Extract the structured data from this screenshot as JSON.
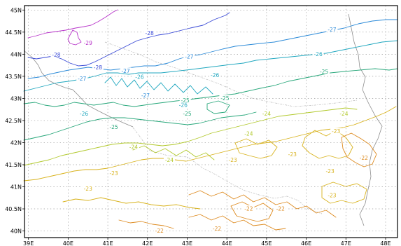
{
  "map": {
    "lat_ticks": [
      "45N",
      "44.5N",
      "44N",
      "43.5N",
      "43N",
      "42.5N",
      "42N",
      "41.5N",
      "41N",
      "40.5N",
      "40N"
    ],
    "lon_ticks": [
      "39E",
      "40E",
      "41E",
      "42E",
      "43E",
      "44E",
      "45E",
      "46E",
      "47E",
      "48E"
    ],
    "lat_range": [
      39.85,
      45.1
    ],
    "lon_range": [
      38.9,
      48.3
    ],
    "colors": {
      "-29": "#b733c9",
      "-28": "#3a4ad6",
      "-27": "#2b8ad8",
      "-26": "#20a7bf",
      "-25": "#27a77a",
      "-24": "#b2c92d",
      "-23": "#d8b21c",
      "-22": "#dd8a1f"
    },
    "contour_labels": [
      {
        "text": "-29",
        "lon": 40.5,
        "lat": 44.25,
        "level": "-29"
      },
      {
        "text": "-28",
        "lon": 42.05,
        "lat": 44.47,
        "level": "-28"
      },
      {
        "text": "-28",
        "lon": 39.7,
        "lat": 43.98,
        "level": "-28"
      },
      {
        "text": "-28",
        "lon": 40.75,
        "lat": 43.7,
        "level": "-28"
      },
      {
        "text": "-27",
        "lon": 46.65,
        "lat": 44.55,
        "level": "-27"
      },
      {
        "text": "-27",
        "lon": 43.05,
        "lat": 43.94,
        "level": "-27"
      },
      {
        "text": "-27",
        "lon": 40.35,
        "lat": 43.44,
        "level": "-27"
      },
      {
        "text": "-27",
        "lon": 41.45,
        "lat": 43.62,
        "level": "-27"
      },
      {
        "text": "-27",
        "lon": 41.95,
        "lat": 43.06,
        "level": "-27"
      },
      {
        "text": "-26",
        "lon": 46.3,
        "lat": 44.0,
        "level": "-26"
      },
      {
        "text": "-26",
        "lon": 43.7,
        "lat": 43.52,
        "level": "-26"
      },
      {
        "text": "-26",
        "lon": 41.8,
        "lat": 43.48,
        "level": "-26"
      },
      {
        "text": "-26",
        "lon": 40.4,
        "lat": 42.65,
        "level": "-26"
      },
      {
        "text": "-26",
        "lon": 42.9,
        "lat": 42.85,
        "level": "-26"
      },
      {
        "text": "-25",
        "lon": 46.45,
        "lat": 43.6,
        "level": "-25"
      },
      {
        "text": "-25",
        "lon": 43.95,
        "lat": 43.0,
        "level": "-25"
      },
      {
        "text": "-25",
        "lon": 42.95,
        "lat": 42.95,
        "level": "-25"
      },
      {
        "text": "-25",
        "lon": 43.0,
        "lat": 42.65,
        "level": "-25"
      },
      {
        "text": "-25",
        "lon": 41.15,
        "lat": 42.35,
        "level": "-25"
      },
      {
        "text": "-24",
        "lon": 45.0,
        "lat": 42.65,
        "level": "-24"
      },
      {
        "text": "-24",
        "lon": 44.55,
        "lat": 42.2,
        "level": "-24"
      },
      {
        "text": "-24",
        "lon": 46.95,
        "lat": 42.65,
        "level": "-24"
      },
      {
        "text": "-24",
        "lon": 41.65,
        "lat": 41.9,
        "level": "-24"
      },
      {
        "text": "-24",
        "lon": 42.55,
        "lat": 41.6,
        "level": "-24"
      },
      {
        "text": "-23",
        "lon": 46.75,
        "lat": 42.25,
        "level": "-23"
      },
      {
        "text": "-23",
        "lon": 45.65,
        "lat": 41.73,
        "level": "-23"
      },
      {
        "text": "-23",
        "lon": 44.15,
        "lat": 41.6,
        "level": "-23"
      },
      {
        "text": "-23",
        "lon": 41.15,
        "lat": 41.3,
        "level": "-23"
      },
      {
        "text": "-23",
        "lon": 46.6,
        "lat": 41.35,
        "level": "-23"
      },
      {
        "text": "-23",
        "lon": 40.5,
        "lat": 40.95,
        "level": "-23"
      },
      {
        "text": "-23",
        "lon": 46.65,
        "lat": 40.8,
        "level": "-23"
      },
      {
        "text": "-22",
        "lon": 47.45,
        "lat": 41.65,
        "level": "-22"
      },
      {
        "text": "-22",
        "lon": 44.55,
        "lat": 40.5,
        "level": "-22"
      },
      {
        "text": "-22",
        "lon": 45.35,
        "lat": 40.5,
        "level": "-22"
      },
      {
        "text": "-22",
        "lon": 43.75,
        "lat": 40.05,
        "level": "-22"
      },
      {
        "text": "-22",
        "lon": 42.3,
        "lat": 40.0,
        "level": "-22"
      }
    ]
  }
}
